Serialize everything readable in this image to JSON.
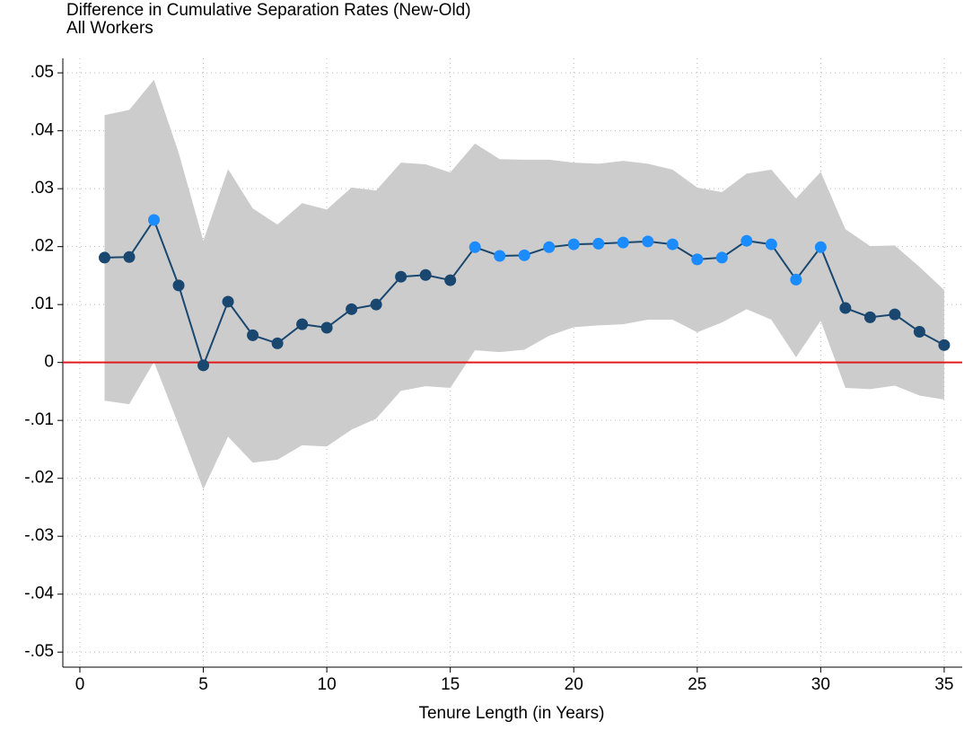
{
  "chart_data": {
    "type": "line",
    "title": "Difference in Cumulative Separation Rates (New-Old)",
    "subtitle": "All Workers",
    "xlabel": "Tenure Length (in Years)",
    "x": [
      1,
      2,
      3,
      4,
      5,
      6,
      7,
      8,
      9,
      10,
      11,
      12,
      13,
      14,
      15,
      16,
      17,
      18,
      19,
      20,
      21,
      22,
      23,
      24,
      25,
      26,
      27,
      28,
      29,
      30,
      31,
      32,
      33,
      34,
      35
    ],
    "series": [
      {
        "color": "#1a476f",
        "values": [
          0.0181,
          0.0182,
          0.0246,
          0.0133,
          -0.0005,
          0.0105,
          0.0047,
          0.0033,
          0.0066,
          0.006,
          0.0092,
          0.01,
          0.0148,
          0.0151,
          0.0142,
          0.0199,
          0.0184,
          0.0185,
          0.0199,
          0.0204,
          0.0205,
          0.0207,
          0.0209,
          0.0204,
          0.0178,
          0.0181,
          0.021,
          0.0204,
          0.0143,
          0.0199,
          0.0094,
          0.0078,
          0.0083,
          0.0053,
          0.003
        ],
        "marker_colors": [
          "#1a476f",
          "#1a476f",
          "#1a8cff",
          "#1a476f",
          "#1a476f",
          "#1a476f",
          "#1a476f",
          "#1a476f",
          "#1a476f",
          "#1a476f",
          "#1a476f",
          "#1a476f",
          "#1a476f",
          "#1a476f",
          "#1a476f",
          "#1a8cff",
          "#1a8cff",
          "#1a8cff",
          "#1a8cff",
          "#1a8cff",
          "#1a8cff",
          "#1a8cff",
          "#1a8cff",
          "#1a8cff",
          "#1a8cff",
          "#1a8cff",
          "#1a8cff",
          "#1a8cff",
          "#1a8cff",
          "#1a8cff",
          "#1a476f",
          "#1a476f",
          "#1a476f",
          "#1a476f",
          "#1a476f"
        ]
      }
    ],
    "ci_upper": [
      0.0427,
      0.0436,
      0.0488,
      0.0362,
      0.021,
      0.0334,
      0.0266,
      0.0238,
      0.0275,
      0.0264,
      0.0302,
      0.0297,
      0.0345,
      0.0342,
      0.0328,
      0.0378,
      0.0351,
      0.035,
      0.035,
      0.0345,
      0.0343,
      0.0348,
      0.0343,
      0.0333,
      0.0302,
      0.0294,
      0.0326,
      0.0333,
      0.0283,
      0.0329,
      0.023,
      0.0201,
      0.0202,
      0.0165,
      0.0125
    ],
    "ci_lower": [
      -0.0066,
      -0.0072,
      0.0001,
      -0.0108,
      -0.0219,
      -0.0128,
      -0.0173,
      -0.0168,
      -0.0143,
      -0.0145,
      -0.0116,
      -0.0097,
      -0.0049,
      -0.0041,
      -0.0044,
      0.0021,
      0.0018,
      0.0022,
      0.0046,
      0.0061,
      0.0064,
      0.0066,
      0.0074,
      0.0074,
      0.0052,
      0.0069,
      0.0092,
      0.0074,
      0.0009,
      0.0072,
      -0.0044,
      -0.0046,
      -0.004,
      -0.0057,
      -0.0064
    ],
    "ci_color": "#cccccc",
    "hline": 0,
    "hline_color": "#e31a1c",
    "xlim": [
      -0.69,
      35.73
    ],
    "xticks": [
      0,
      5,
      10,
      15,
      20,
      25,
      30,
      35
    ],
    "ylim": [
      -0.0526,
      0.0525
    ],
    "yticks": [
      {
        "value": 0.05,
        "label": ".05"
      },
      {
        "value": 0.04,
        "label": ".04"
      },
      {
        "value": 0.03,
        "label": ".03"
      },
      {
        "value": 0.02,
        "label": ".02"
      },
      {
        "value": 0.01,
        "label": ".01"
      },
      0,
      {
        "value": -0.01,
        "label": "-.01"
      },
      {
        "value": -0.02,
        "label": "-.02"
      },
      {
        "value": -0.03,
        "label": "-.03"
      },
      {
        "value": -0.04,
        "label": "-.04"
      },
      {
        "value": -0.05,
        "label": "-.05"
      }
    ],
    "grid": true
  }
}
